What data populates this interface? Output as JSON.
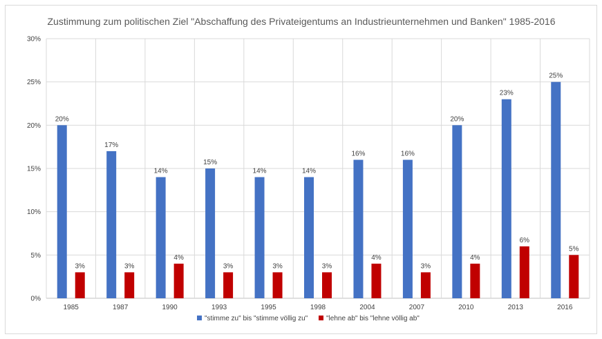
{
  "chart_data": {
    "type": "bar",
    "title": "Zustimmung zum politischen Ziel \"Abschaffung des Privateigentums an Industrieunternehmen und Banken\" 1985-2016",
    "categories": [
      "1985",
      "1987",
      "1990",
      "1993",
      "1995",
      "1998",
      "2004",
      "2007",
      "2010",
      "2013",
      "2016"
    ],
    "series": [
      {
        "name": "\"stimme zu\" bis \"stimme völlig zu\"",
        "color": "#4472c4",
        "values": [
          20,
          17,
          14,
          15,
          14,
          14,
          16,
          16,
          20,
          23,
          25
        ],
        "labels": [
          "20%",
          "17%",
          "14%",
          "15%",
          "14%",
          "14%",
          "16%",
          "16%",
          "20%",
          "23%",
          "25%"
        ]
      },
      {
        "name": "\"lehne ab\" bis \"lehne völlig ab\"",
        "color": "#c00000",
        "values": [
          3,
          3,
          4,
          3,
          3,
          3,
          4,
          3,
          4,
          6,
          5
        ],
        "labels": [
          "3%",
          "3%",
          "4%",
          "3%",
          "3%",
          "3%",
          "4%",
          "3%",
          "4%",
          "6%",
          "5%"
        ]
      }
    ],
    "yticks": [
      "0%",
      "5%",
      "10%",
      "15%",
      "20%",
      "25%",
      "30%"
    ],
    "ylim": [
      0,
      30
    ],
    "grid": true,
    "legend_position": "bottom"
  }
}
